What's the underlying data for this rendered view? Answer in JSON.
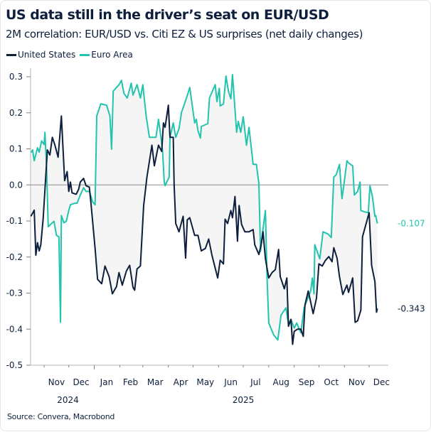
{
  "title": "US data still in the driver’s seat on EUR/USD",
  "subtitle": "2M correlation: EUR/USD vs. Citi EZ & US surprises (net daily changes)",
  "source": "Source: Convera, Macrobond",
  "chart_data": {
    "type": "line",
    "title": "US data still in the driver’s seat on EUR/USD",
    "subtitle": "2M correlation: EUR/USD vs. Citi EZ & US surprises (net daily changes)",
    "ylim": [
      -0.5,
      0.3
    ],
    "yticks": [
      "0.3",
      "0.2",
      "0.1",
      "0.0",
      "-0.1",
      "-0.2",
      "-0.3",
      "-0.4",
      "-0.5"
    ],
    "xticks": [
      {
        "label": "Nov",
        "mid": "2024-11-16"
      },
      {
        "label": "Dec",
        "mid": "2024-12-16"
      },
      {
        "label": "Jan",
        "mid": "2025-01-16"
      },
      {
        "label": "Feb",
        "mid": "2025-02-14"
      },
      {
        "label": "Mar",
        "mid": "2025-03-16"
      },
      {
        "label": "Apr",
        "mid": "2025-04-16"
      },
      {
        "label": "May",
        "mid": "2025-05-16"
      },
      {
        "label": "Jun",
        "mid": "2025-06-16"
      },
      {
        "label": "Jul",
        "mid": "2025-07-16"
      },
      {
        "label": "Aug",
        "mid": "2025-08-16"
      },
      {
        "label": "Sep",
        "mid": "2025-09-16"
      },
      {
        "label": "Oct",
        "mid": "2025-10-16"
      },
      {
        "label": "Nov",
        "mid": "2025-11-16"
      },
      {
        "label": "Dec",
        "mid": "2025-12-16"
      }
    ],
    "year_labels": [
      {
        "label": "2024",
        "mid": "2024-11-30"
      },
      {
        "label": "2025",
        "mid": "2025-07-01"
      }
    ],
    "zero_line": true,
    "grid": false,
    "legend_placement": "top-left",
    "shading_between_series": "#f5f5f5",
    "series": [
      {
        "name": "United States",
        "color": "#0d1f3c",
        "last_label": "-0.343",
        "points": [
          [
            "2024-10-16",
            -0.087
          ],
          [
            "2024-10-20",
            -0.07
          ],
          [
            "2024-10-22",
            -0.195
          ],
          [
            "2024-10-24",
            -0.16
          ],
          [
            "2024-10-26",
            -0.183
          ],
          [
            "2024-10-28",
            -0.166
          ],
          [
            "2024-10-31",
            -0.091
          ],
          [
            "2024-11-05",
            0.097
          ],
          [
            "2024-11-08",
            0.083
          ],
          [
            "2024-11-11",
            0.132
          ],
          [
            "2024-11-14",
            0.112
          ],
          [
            "2024-11-18",
            0.077
          ],
          [
            "2024-11-22",
            0.191
          ],
          [
            "2024-11-26",
            0.012
          ],
          [
            "2024-11-29",
            0.037
          ],
          [
            "2024-12-01",
            -0.018
          ],
          [
            "2024-12-03",
            0.008
          ],
          [
            "2024-12-05",
            -0.022
          ],
          [
            "2024-12-10",
            -0.026
          ],
          [
            "2024-12-13",
            -0.012
          ],
          [
            "2024-12-15",
            0.008
          ],
          [
            "2024-12-19",
            0.018
          ],
          [
            "2024-12-22",
            -0.002
          ],
          [
            "2024-12-26",
            -0.006
          ],
          [
            "2024-12-28",
            -0.051
          ],
          [
            "2025-01-02",
            -0.176
          ],
          [
            "2025-01-05",
            -0.262
          ],
          [
            "2025-01-10",
            -0.274
          ],
          [
            "2025-01-14",
            -0.225
          ],
          [
            "2025-01-19",
            -0.254
          ],
          [
            "2025-01-23",
            -0.302
          ],
          [
            "2025-01-28",
            -0.282
          ],
          [
            "2025-01-31",
            -0.243
          ],
          [
            "2025-02-04",
            -0.278
          ],
          [
            "2025-02-09",
            -0.239
          ],
          [
            "2025-02-13",
            -0.223
          ],
          [
            "2025-02-17",
            -0.284
          ],
          [
            "2025-02-19",
            -0.292
          ],
          [
            "2025-02-22",
            -0.233
          ],
          [
            "2025-02-26",
            -0.225
          ],
          [
            "2025-03-02",
            -0.057
          ],
          [
            "2025-03-06",
            0.022
          ],
          [
            "2025-03-12",
            0.11
          ],
          [
            "2025-03-15",
            0.053
          ],
          [
            "2025-03-20",
            0.11
          ],
          [
            "2025-03-24",
            0.093
          ],
          [
            "2025-03-26",
            0.172
          ],
          [
            "2025-03-28",
            0.16
          ],
          [
            "2025-04-01",
            0.221
          ],
          [
            "2025-04-03",
            0.132
          ],
          [
            "2025-04-07",
            0.132
          ],
          [
            "2025-04-08",
            0.002
          ],
          [
            "2025-04-10",
            -0.107
          ],
          [
            "2025-04-14",
            -0.13
          ],
          [
            "2025-04-19",
            -0.087
          ],
          [
            "2025-04-22",
            -0.203
          ],
          [
            "2025-04-24",
            -0.097
          ],
          [
            "2025-04-27",
            -0.091
          ],
          [
            "2025-05-03",
            -0.14
          ],
          [
            "2025-05-07",
            -0.14
          ],
          [
            "2025-05-11",
            -0.183
          ],
          [
            "2025-05-16",
            -0.176
          ],
          [
            "2025-05-20",
            -0.15
          ],
          [
            "2025-05-24",
            -0.195
          ],
          [
            "2025-05-31",
            -0.258
          ],
          [
            "2025-06-03",
            -0.209
          ],
          [
            "2025-06-07",
            -0.219
          ],
          [
            "2025-06-09",
            -0.095
          ],
          [
            "2025-06-12",
            -0.107
          ],
          [
            "2025-06-16",
            -0.071
          ],
          [
            "2025-06-18",
            -0.091
          ],
          [
            "2025-06-21",
            -0.032
          ],
          [
            "2025-06-24",
            -0.156
          ],
          [
            "2025-06-26",
            -0.057
          ],
          [
            "2025-06-29",
            -0.11
          ],
          [
            "2025-07-03",
            -0.13
          ],
          [
            "2025-07-08",
            -0.13
          ],
          [
            "2025-07-13",
            -0.124
          ],
          [
            "2025-07-15",
            -0.166
          ],
          [
            "2025-07-20",
            -0.193
          ],
          [
            "2025-07-23",
            -0.164
          ],
          [
            "2025-07-25",
            -0.13
          ],
          [
            "2025-07-28",
            -0.205
          ],
          [
            "2025-08-01",
            -0.258
          ],
          [
            "2025-08-05",
            -0.243
          ],
          [
            "2025-08-09",
            -0.235
          ],
          [
            "2025-08-13",
            -0.179
          ],
          [
            "2025-08-15",
            -0.254
          ],
          [
            "2025-08-20",
            -0.288
          ],
          [
            "2025-08-23",
            -0.258
          ],
          [
            "2025-08-25",
            -0.392
          ],
          [
            "2025-08-28",
            -0.373
          ],
          [
            "2025-08-30",
            -0.442
          ],
          [
            "2025-09-01",
            -0.406
          ],
          [
            "2025-09-05",
            -0.4
          ],
          [
            "2025-09-09",
            -0.4
          ],
          [
            "2025-09-12",
            -0.42
          ],
          [
            "2025-09-14",
            -0.333
          ],
          [
            "2025-09-18",
            -0.294
          ],
          [
            "2025-09-24",
            -0.357
          ],
          [
            "2025-09-28",
            -0.314
          ],
          [
            "2025-10-01",
            -0.219
          ],
          [
            "2025-10-05",
            -0.225
          ],
          [
            "2025-10-09",
            -0.209
          ],
          [
            "2025-10-13",
            -0.199
          ],
          [
            "2025-10-17",
            -0.213
          ],
          [
            "2025-10-19",
            -0.174
          ],
          [
            "2025-10-23",
            -0.203
          ],
          [
            "2025-10-26",
            -0.254
          ],
          [
            "2025-10-30",
            -0.304
          ],
          [
            "2025-11-04",
            -0.278
          ],
          [
            "2025-11-06",
            -0.298
          ],
          [
            "2025-11-11",
            -0.258
          ],
          [
            "2025-11-14",
            -0.381
          ],
          [
            "2025-11-17",
            -0.377
          ],
          [
            "2025-11-21",
            -0.347
          ],
          [
            "2025-11-23",
            -0.144
          ],
          [
            "2025-12-01",
            -0.077
          ],
          [
            "2025-12-04",
            -0.223
          ],
          [
            "2025-12-08",
            -0.268
          ],
          [
            "2025-12-10",
            -0.353
          ],
          [
            "2025-12-11",
            -0.343
          ]
        ]
      },
      {
        "name": "Euro Area",
        "color": "#22c4ae",
        "last_label": "-0.107",
        "points": [
          [
            "2024-10-16",
            0.09
          ],
          [
            "2024-10-18",
            0.097
          ],
          [
            "2024-10-20",
            0.067
          ],
          [
            "2024-10-24",
            0.103
          ],
          [
            "2024-10-26",
            0.091
          ],
          [
            "2024-10-29",
            0.122
          ],
          [
            "2024-11-01",
            0.112
          ],
          [
            "2024-11-02",
            0.146
          ],
          [
            "2024-11-04",
            0.047
          ],
          [
            "2024-11-06",
            -0.116
          ],
          [
            "2024-11-10",
            -0.107
          ],
          [
            "2024-11-13",
            -0.101
          ],
          [
            "2024-11-16",
            -0.14
          ],
          [
            "2024-11-19",
            -0.144
          ],
          [
            "2024-11-21",
            -0.381
          ],
          [
            "2024-11-22",
            -0.085
          ],
          [
            "2024-11-25",
            -0.105
          ],
          [
            "2024-11-28",
            -0.101
          ],
          [
            "2024-12-01",
            -0.071
          ],
          [
            "2024-12-03",
            -0.055
          ],
          [
            "2024-12-08",
            -0.051
          ],
          [
            "2024-12-11",
            -0.051
          ],
          [
            "2024-12-15",
            -0.028
          ],
          [
            "2024-12-19",
            -0.008
          ],
          [
            "2024-12-22",
            -0.018
          ],
          [
            "2024-12-26",
            -0.018
          ],
          [
            "2024-12-30",
            -0.047
          ],
          [
            "2025-01-02",
            -0.055
          ],
          [
            "2025-01-04",
            0.191
          ],
          [
            "2025-01-09",
            0.225
          ],
          [
            "2025-01-16",
            0.221
          ],
          [
            "2025-01-20",
            0.191
          ],
          [
            "2025-01-22",
            0.099
          ],
          [
            "2025-01-24",
            0.26
          ],
          [
            "2025-01-31",
            0.278
          ],
          [
            "2025-02-03",
            0.29
          ],
          [
            "2025-02-06",
            0.254
          ],
          [
            "2025-02-10",
            0.241
          ],
          [
            "2025-02-15",
            0.282
          ],
          [
            "2025-02-17",
            0.249
          ],
          [
            "2025-02-22",
            0.278
          ],
          [
            "2025-02-26",
            0.241
          ],
          [
            "2025-03-01",
            0.278
          ],
          [
            "2025-03-05",
            0.191
          ],
          [
            "2025-03-09",
            0.132
          ],
          [
            "2025-03-13",
            0.132
          ],
          [
            "2025-03-17",
            0.132
          ],
          [
            "2025-03-20",
            0.182
          ],
          [
            "2025-03-23",
            0.132
          ],
          [
            "2025-03-25",
            0.093
          ],
          [
            "2025-03-27",
            0.008
          ],
          [
            "2025-03-28",
            -0.002
          ],
          [
            "2025-04-02",
            0.022
          ],
          [
            "2025-04-03",
            0.132
          ],
          [
            "2025-04-07",
            0.172
          ],
          [
            "2025-04-10",
            0.132
          ],
          [
            "2025-04-14",
            0.156
          ],
          [
            "2025-04-17",
            0.201
          ],
          [
            "2025-04-23",
            0.241
          ],
          [
            "2025-04-27",
            0.27
          ],
          [
            "2025-05-03",
            0.172
          ],
          [
            "2025-05-05",
            0.182
          ],
          [
            "2025-05-07",
            0.15
          ],
          [
            "2025-05-10",
            0.13
          ],
          [
            "2025-05-11",
            0.162
          ],
          [
            "2025-05-19",
            0.17
          ],
          [
            "2025-05-21",
            0.241
          ],
          [
            "2025-05-28",
            0.278
          ],
          [
            "2025-05-30",
            0.231
          ],
          [
            "2025-06-02",
            0.268
          ],
          [
            "2025-06-03",
            0.219
          ],
          [
            "2025-06-07",
            0.225
          ],
          [
            "2025-06-10",
            0.302
          ],
          [
            "2025-06-13",
            0.26
          ],
          [
            "2025-06-16",
            0.239
          ],
          [
            "2025-06-18",
            0.306
          ],
          [
            "2025-06-23",
            0.146
          ],
          [
            "2025-06-25",
            0.176
          ],
          [
            "2025-06-28",
            0.146
          ],
          [
            "2025-07-01",
            0.189
          ],
          [
            "2025-07-05",
            0.11
          ],
          [
            "2025-07-08",
            0.16
          ],
          [
            "2025-07-13",
            0.057
          ],
          [
            "2025-07-17",
            0.057
          ],
          [
            "2025-07-20",
            0.004
          ],
          [
            "2025-07-22",
            -0.184
          ],
          [
            "2025-07-24",
            -0.14
          ],
          [
            "2025-07-28",
            -0.071
          ],
          [
            "2025-07-30",
            -0.258
          ],
          [
            "2025-08-01",
            -0.383
          ],
          [
            "2025-08-07",
            -0.416
          ],
          [
            "2025-08-12",
            -0.43
          ],
          [
            "2025-08-16",
            -0.361
          ],
          [
            "2025-08-22",
            -0.341
          ],
          [
            "2025-08-25",
            -0.387
          ],
          [
            "2025-08-28",
            -0.373
          ],
          [
            "2025-09-01",
            -0.397
          ],
          [
            "2025-09-04",
            -0.383
          ],
          [
            "2025-09-09",
            -0.41
          ],
          [
            "2025-09-13",
            -0.341
          ],
          [
            "2025-09-17",
            -0.317
          ],
          [
            "2025-09-21",
            -0.294
          ],
          [
            "2025-09-23",
            -0.258
          ],
          [
            "2025-09-25",
            -0.302
          ],
          [
            "2025-09-26",
            -0.166
          ],
          [
            "2025-10-02",
            -0.205
          ],
          [
            "2025-10-06",
            -0.13
          ],
          [
            "2025-10-12",
            -0.136
          ],
          [
            "2025-10-16",
            -0.146
          ],
          [
            "2025-10-19",
            0.022
          ],
          [
            "2025-10-22",
            0.028
          ],
          [
            "2025-10-26",
            0.057
          ],
          [
            "2025-10-29",
            -0.038
          ],
          [
            "2025-10-31",
            -0.006
          ],
          [
            "2025-11-04",
            0.067
          ],
          [
            "2025-11-06",
            0.061
          ],
          [
            "2025-11-11",
            0.053
          ],
          [
            "2025-11-13",
            -0.028
          ],
          [
            "2025-11-17",
            -0.018
          ],
          [
            "2025-11-20",
            0.008
          ],
          [
            "2025-11-21",
            -0.071
          ],
          [
            "2025-11-26",
            -0.075
          ],
          [
            "2025-11-30",
            -0.077
          ],
          [
            "2025-12-02",
            -0.002
          ],
          [
            "2025-12-05",
            -0.032
          ],
          [
            "2025-12-08",
            -0.087
          ],
          [
            "2025-12-09",
            -0.085
          ],
          [
            "2025-12-11",
            -0.107
          ]
        ]
      }
    ]
  }
}
